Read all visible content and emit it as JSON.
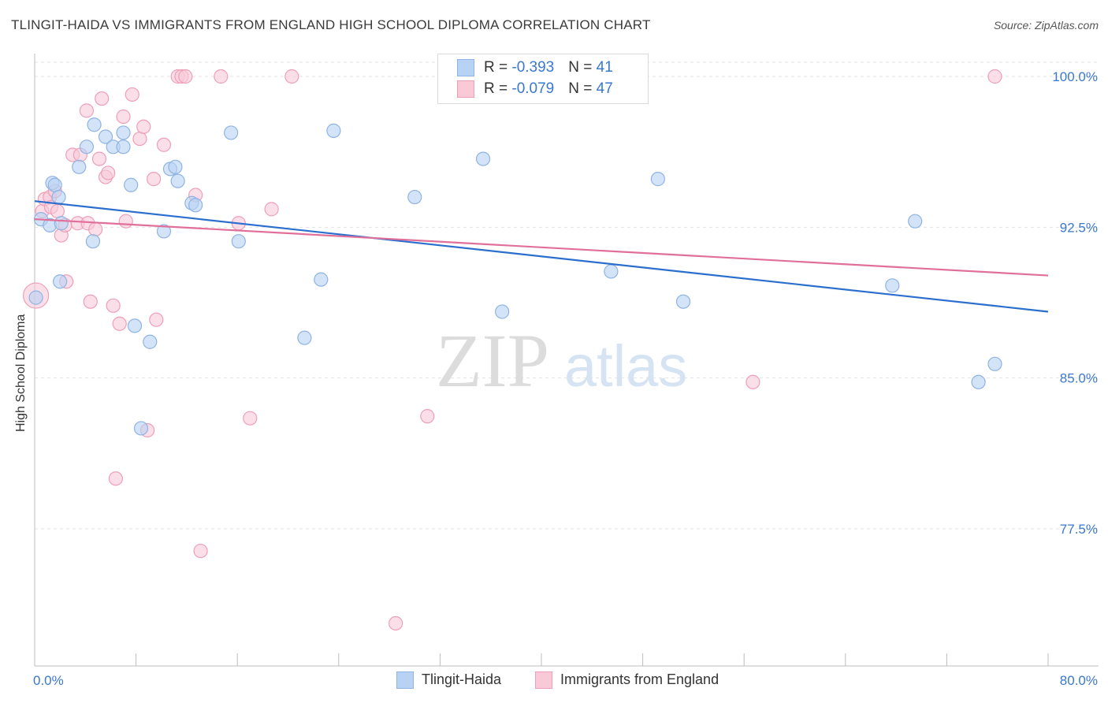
{
  "title": "TLINGIT-HAIDA VS IMMIGRANTS FROM ENGLAND HIGH SCHOOL DIPLOMA CORRELATION CHART",
  "source": "Source: ZipAtlas.com",
  "watermark": {
    "zip": "ZIP",
    "atlas": "atlas"
  },
  "legend": {
    "rows": [
      {
        "r_label": "R = ",
        "r_value": "-0.393",
        "n_label": "N = ",
        "n_value": "41"
      },
      {
        "r_label": "R = ",
        "r_value": "-0.079",
        "n_label": "N = ",
        "n_value": "47"
      }
    ]
  },
  "chart_data": {
    "type": "scatter",
    "title": "TLINGIT-HAIDA VS IMMIGRANTS FROM ENGLAND HIGH SCHOOL DIPLOMA CORRELATION CHART",
    "xlabel": "",
    "ylabel": "High School Diploma",
    "xlim": [
      0,
      80
    ],
    "ylim": [
      70.0,
      100.5
    ],
    "x_tick_labels": [
      "0.0%",
      "80.0%"
    ],
    "y_tick_labels": [
      "100.0%",
      "92.5%",
      "85.0%",
      "77.5%"
    ],
    "y_ticks": [
      100.0,
      92.5,
      85.0,
      77.5
    ],
    "grid": true,
    "legend_position": "top-center",
    "colors": {
      "blue_fill": "#b8d2f3",
      "blue_stroke": "#8fb3e3",
      "blue_line": "#2b6fce",
      "pink_fill": "#f9c9d8",
      "pink_stroke": "#ee9fb8",
      "pink_line": "#e0709a"
    },
    "series": [
      {
        "name": "Tlingit-Haida",
        "color": "#8fb3e3",
        "trend": {
          "x": [
            0,
            80
          ],
          "y": [
            93.8,
            88.3
          ]
        },
        "points": [
          [
            0.1,
            89.0
          ],
          [
            0.5,
            92.9
          ],
          [
            1.2,
            92.6
          ],
          [
            1.4,
            94.7
          ],
          [
            1.6,
            94.6
          ],
          [
            1.9,
            94.0
          ],
          [
            2.0,
            89.8
          ],
          [
            3.5,
            95.5
          ],
          [
            4.1,
            96.5
          ],
          [
            4.6,
            91.8
          ],
          [
            4.7,
            97.6
          ],
          [
            5.6,
            97.0
          ],
          [
            6.2,
            96.5
          ],
          [
            7.0,
            96.5
          ],
          [
            7.0,
            97.2
          ],
          [
            7.6,
            94.6
          ],
          [
            7.9,
            87.6
          ],
          [
            8.4,
            82.5
          ],
          [
            9.1,
            86.8
          ],
          [
            10.2,
            92.3
          ],
          [
            10.7,
            95.4
          ],
          [
            11.1,
            95.5
          ],
          [
            11.3,
            94.8
          ],
          [
            12.4,
            93.7
          ],
          [
            12.7,
            93.6
          ],
          [
            15.5,
            97.2
          ],
          [
            16.1,
            91.8
          ],
          [
            21.3,
            87.0
          ],
          [
            22.6,
            89.9
          ],
          [
            23.6,
            97.3
          ],
          [
            30.0,
            94.0
          ],
          [
            35.4,
            95.9
          ],
          [
            36.9,
            88.3
          ],
          [
            45.5,
            90.3
          ],
          [
            49.2,
            94.9
          ],
          [
            51.2,
            88.8
          ],
          [
            67.7,
            89.6
          ],
          [
            69.5,
            92.8
          ],
          [
            74.5,
            84.8
          ],
          [
            75.8,
            85.7
          ],
          [
            2.1,
            92.7
          ]
        ]
      },
      {
        "name": "Immigrants from England",
        "color": "#ee9fb8",
        "trend": {
          "x": [
            0,
            80
          ],
          "y": [
            92.9,
            90.1
          ]
        },
        "points": [
          [
            0.1,
            89.1
          ],
          [
            0.6,
            93.3
          ],
          [
            0.8,
            93.9
          ],
          [
            1.2,
            94.0
          ],
          [
            1.3,
            93.5
          ],
          [
            1.6,
            94.3
          ],
          [
            1.8,
            93.3
          ],
          [
            2.1,
            92.1
          ],
          [
            2.4,
            92.6
          ],
          [
            2.5,
            89.8
          ],
          [
            3.0,
            96.1
          ],
          [
            3.4,
            92.7
          ],
          [
            3.6,
            96.1
          ],
          [
            4.1,
            98.3
          ],
          [
            4.2,
            92.7
          ],
          [
            4.4,
            88.8
          ],
          [
            4.8,
            92.4
          ],
          [
            5.1,
            95.9
          ],
          [
            5.3,
            98.9
          ],
          [
            5.6,
            95.0
          ],
          [
            5.8,
            95.2
          ],
          [
            6.2,
            88.6
          ],
          [
            6.4,
            80.0
          ],
          [
            6.7,
            87.7
          ],
          [
            7.0,
            98.0
          ],
          [
            7.2,
            92.8
          ],
          [
            7.7,
            99.1
          ],
          [
            8.3,
            96.9
          ],
          [
            8.6,
            97.5
          ],
          [
            8.9,
            82.4
          ],
          [
            9.4,
            94.9
          ],
          [
            9.6,
            87.9
          ],
          [
            10.2,
            96.6
          ],
          [
            11.3,
            100.0
          ],
          [
            11.6,
            100.0
          ],
          [
            11.9,
            100.0
          ],
          [
            12.7,
            94.1
          ],
          [
            13.1,
            76.4
          ],
          [
            14.7,
            100.0
          ],
          [
            16.1,
            92.7
          ],
          [
            17.0,
            83.0
          ],
          [
            18.7,
            93.4
          ],
          [
            20.3,
            100.0
          ],
          [
            28.5,
            72.8
          ],
          [
            31.0,
            83.1
          ],
          [
            56.7,
            84.8
          ],
          [
            75.8,
            100.0
          ]
        ]
      }
    ]
  },
  "bottom_legend": [
    {
      "label": "Tlingit-Haida"
    },
    {
      "label": "Immigrants from England"
    }
  ]
}
